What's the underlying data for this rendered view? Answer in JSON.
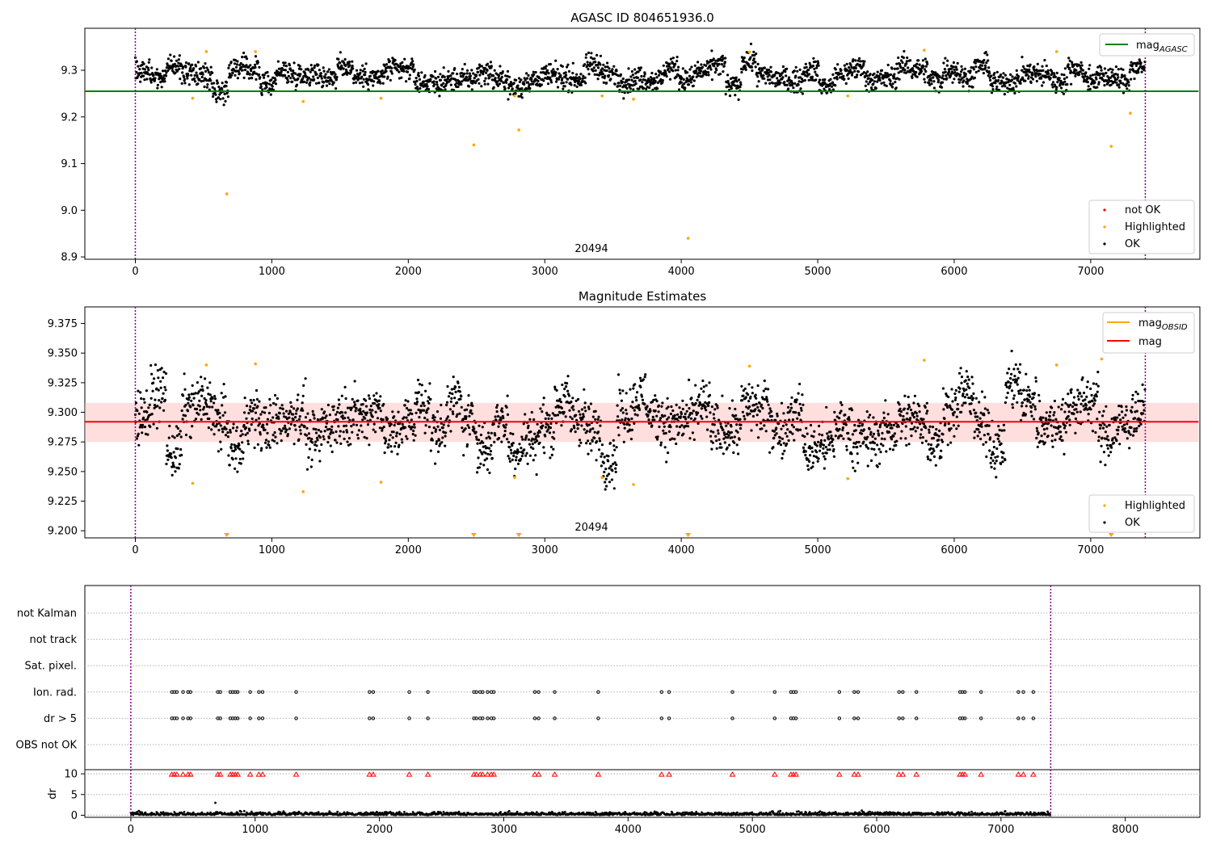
{
  "chart_data": [
    {
      "type": "scatter",
      "title": "AGASC ID 804651936.0",
      "xlabel": "",
      "ylabel": "",
      "xlim": [
        -370,
        7800
      ],
      "ylim": [
        8.895,
        9.39
      ],
      "xticks": [
        "0",
        "1000",
        "2000",
        "3000",
        "4000",
        "5000",
        "6000",
        "7000",
        "8000"
      ],
      "yticks": [
        "8.9",
        "9.0",
        "9.1",
        "9.2",
        "9.3"
      ],
      "grid": false,
      "obsid_label": "20494",
      "vlines_x": [
        0,
        7400
      ],
      "hline": {
        "name": "mag",
        "sub": "AGASC",
        "y": 9.255,
        "x_range": [
          -370,
          7790
        ],
        "color": "#008000"
      },
      "legend_lines": {
        "placement": "top-right",
        "entries": [
          {
            "name": "mag",
            "sub": "AGASC",
            "color": "#008000"
          }
        ]
      },
      "legend_points": {
        "placement": "bottom-right",
        "entries": [
          {
            "name": "not OK",
            "color": "#ff0000"
          },
          {
            "name": "Highlighted",
            "color": "#ffa500"
          },
          {
            "name": "OK",
            "color": "#000000"
          }
        ]
      },
      "ok_series": {
        "name": "OK",
        "color": "#000000",
        "x_range": [
          0,
          7400
        ],
        "center": 9.29,
        "spread": 0.022
      },
      "highlighted": {
        "name": "Highlighted",
        "color": "#ffa500",
        "points": [
          [
            420,
            9.24
          ],
          [
            520,
            9.34
          ],
          [
            670,
            9.035
          ],
          [
            880,
            9.34
          ],
          [
            1230,
            9.233
          ],
          [
            1800,
            9.24
          ],
          [
            2480,
            9.14
          ],
          [
            2780,
            9.245
          ],
          [
            2810,
            9.172
          ],
          [
            3420,
            9.245
          ],
          [
            3650,
            9.238
          ],
          [
            4050,
            8.94
          ],
          [
            4500,
            9.339
          ],
          [
            5220,
            9.245
          ],
          [
            5780,
            9.343
          ],
          [
            6750,
            9.34
          ],
          [
            7080,
            9.345
          ],
          [
            7150,
            9.137
          ],
          [
            7290,
            9.208
          ]
        ]
      }
    },
    {
      "type": "scatter",
      "title": "Magnitude Estimates",
      "xlabel": "",
      "ylabel": "",
      "xlim": [
        -370,
        7800
      ],
      "ylim": [
        9.194,
        9.389
      ],
      "xticks": [
        "0",
        "1000",
        "2000",
        "3000",
        "4000",
        "5000",
        "6000",
        "7000",
        "8000"
      ],
      "yticks": [
        "9.200",
        "9.225",
        "9.250",
        "9.275",
        "9.300",
        "9.325",
        "9.350",
        "9.375"
      ],
      "grid": false,
      "obsid_label": "20494",
      "vlines_x": [
        0,
        7400
      ],
      "band": {
        "y_low": 9.275,
        "y_high": 9.308,
        "x_range": [
          -370,
          7790
        ],
        "color": "#ffb6b6"
      },
      "hline": {
        "name": "mag",
        "y": 9.292,
        "x_range": [
          -370,
          7790
        ],
        "color": "#ff0000"
      },
      "obsid_line": {
        "name": "mag",
        "sub": "OBSID",
        "color": "#ffa500"
      },
      "legend_lines": {
        "placement": "top-right",
        "entries": [
          {
            "name": "mag",
            "sub": "OBSID",
            "color": "#ffa500"
          },
          {
            "name": "mag",
            "sub": "",
            "color": "#ff0000"
          }
        ]
      },
      "legend_points": {
        "placement": "bottom-right",
        "entries": [
          {
            "name": "Highlighted",
            "color": "#ffa500"
          },
          {
            "name": "OK",
            "color": "#000000"
          }
        ]
      },
      "ok_series": {
        "name": "OK",
        "color": "#000000",
        "x_range": [
          0,
          7400
        ],
        "center": 9.29,
        "spread": 0.02
      },
      "highlighted": {
        "name": "Highlighted",
        "color": "#ffa500",
        "points": [
          [
            420,
            9.24
          ],
          [
            520,
            9.34
          ],
          [
            880,
            9.341
          ],
          [
            1230,
            9.233
          ],
          [
            1800,
            9.241
          ],
          [
            2780,
            9.245
          ],
          [
            3420,
            9.245
          ],
          [
            3650,
            9.239
          ],
          [
            4500,
            9.339
          ],
          [
            5220,
            9.244
          ],
          [
            5780,
            9.344
          ],
          [
            6750,
            9.34
          ],
          [
            7080,
            9.345
          ],
          [
            7290,
            9.208
          ]
        ]
      },
      "clipped_below": {
        "color": "#ffa500",
        "x": [
          670,
          2480,
          2810,
          4050,
          7150
        ]
      }
    },
    {
      "type": "scatter",
      "title": "",
      "xlabel": "",
      "ylabel": "",
      "xlim": [
        -370,
        8600
      ],
      "xticks": [
        "0",
        "1000",
        "2000",
        "3000",
        "4000",
        "5000",
        "6000",
        "7000",
        "8000"
      ],
      "vlines_x": [
        0,
        7400
      ],
      "flag_rows": [
        "not Kalman",
        "not track",
        "Sat. pixel.",
        "Ion. rad.",
        "dr > 5",
        "OBS not OK"
      ],
      "flag_x": [
        330,
        350,
        370,
        420,
        460,
        480,
        700,
        720,
        800,
        820,
        840,
        860,
        960,
        1030,
        1060,
        1330,
        1920,
        1950,
        2240,
        2390,
        2760,
        2780,
        2810,
        2830,
        2870,
        2900,
        2920,
        3250,
        3280,
        3410,
        3760,
        4270,
        4330,
        4840,
        5180,
        5310,
        5330,
        5350,
        5700,
        5820,
        5850,
        6180,
        6210,
        6320,
        6670,
        6690,
        6710,
        6840,
        7140,
        7180,
        7260
      ],
      "flagged_rows": [
        "Ion. rad.",
        "dr > 5"
      ]
    },
    {
      "type": "scatter",
      "title": "",
      "xlabel": "",
      "ylabel": "dr",
      "xlim": [
        -370,
        8600
      ],
      "ylim": [
        -0.5,
        11
      ],
      "xticks": [
        "0",
        "1000",
        "2000",
        "3000",
        "4000",
        "5000",
        "6000",
        "7000",
        "8000"
      ],
      "yticks": [
        "0",
        "5",
        "10"
      ],
      "vlines_x": [
        0,
        7400
      ],
      "clipped_above": {
        "color": "#ff0000",
        "y": 10
      },
      "outlier": [
        680,
        3.0
      ]
    }
  ]
}
